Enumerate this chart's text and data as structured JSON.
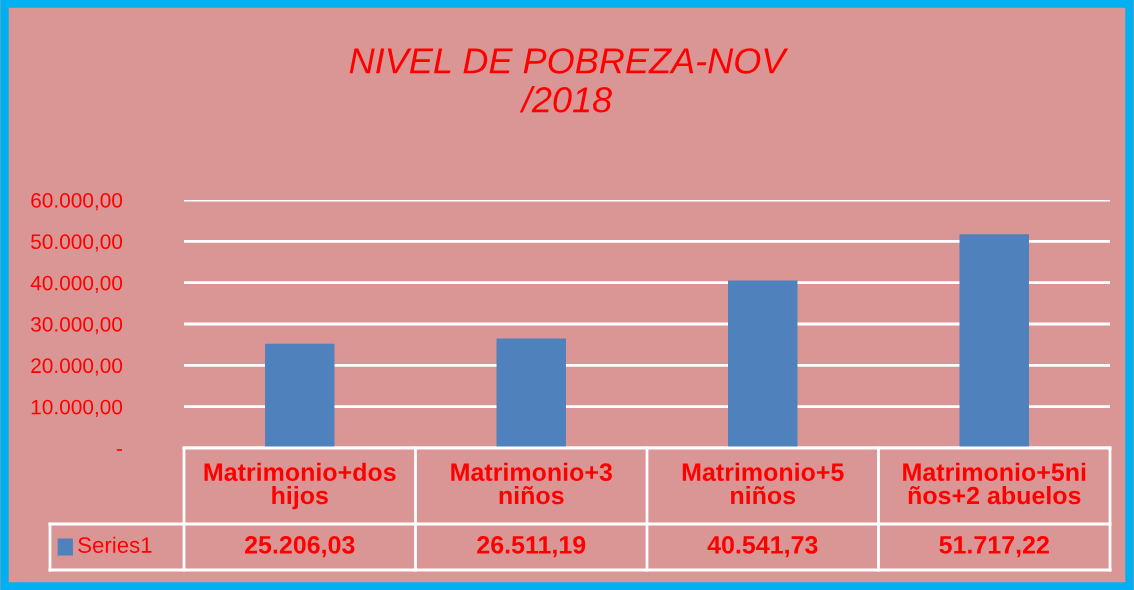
{
  "chart_data": {
    "type": "bar",
    "title": "NIVEL DE POBREZA-NOV\n/2018",
    "categories": [
      "Matrimonio+dos hijos",
      "Matrimonio+3 niños",
      "Matrimonio+5 niños",
      "Matrimonio+5niños+2 abuelos"
    ],
    "series": [
      {
        "name": "Series1",
        "color": "#4f81bd",
        "values": [
          25206.03,
          26511.19,
          40541.73,
          51717.22
        ],
        "value_labels": [
          "25.206,03",
          "26.511,19",
          "40.541,73",
          "51.717,22"
        ]
      }
    ],
    "ylim": [
      0,
      60000
    ],
    "yticks": [
      {
        "value": 0,
        "label": "-"
      },
      {
        "value": 10000,
        "label": "10.000,00"
      },
      {
        "value": 20000,
        "label": "20.000,00"
      },
      {
        "value": 30000,
        "label": "30.000,00"
      },
      {
        "value": 40000,
        "label": "40.000,00"
      },
      {
        "value": 50000,
        "label": "50.000,00"
      },
      {
        "value": 60000,
        "label": "60.000,00"
      }
    ],
    "grid": "y",
    "legend": "bottom"
  }
}
